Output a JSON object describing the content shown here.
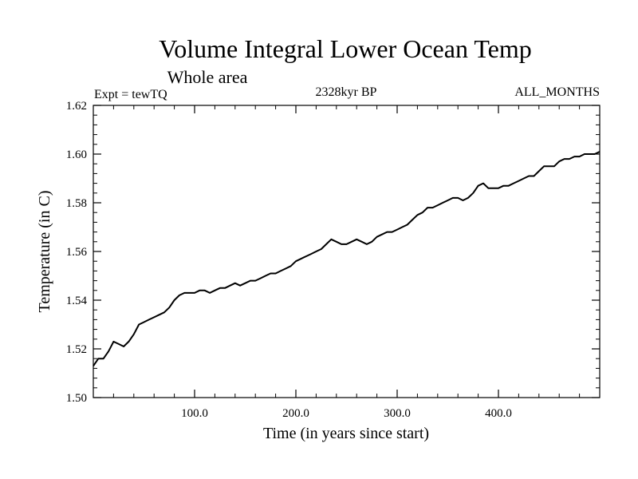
{
  "chart_data": {
    "type": "line",
    "title": "Volume Integral Lower Ocean Temp",
    "subtitle": "Whole area",
    "left_label": "Expt = tewTQ",
    "center_label": "2328kyr BP",
    "right_label": "ALL_MONTHS",
    "xlabel": "Time (in years since start)",
    "ylabel": "Temperature (in C)",
    "xlim": [
      0,
      500
    ],
    "ylim": [
      1.5,
      1.62
    ],
    "x_ticks": [
      {
        "value": 100,
        "label": "100.0"
      },
      {
        "value": 200,
        "label": "200.0"
      },
      {
        "value": 300,
        "label": "300.0"
      },
      {
        "value": 400,
        "label": "400.0"
      }
    ],
    "y_ticks": [
      {
        "value": 1.5,
        "label": "1.50"
      },
      {
        "value": 1.52,
        "label": "1.52"
      },
      {
        "value": 1.54,
        "label": "1.54"
      },
      {
        "value": 1.56,
        "label": "1.56"
      },
      {
        "value": 1.58,
        "label": "1.58"
      },
      {
        "value": 1.6,
        "label": "1.60"
      },
      {
        "value": 1.62,
        "label": "1.62"
      }
    ],
    "series": [
      {
        "name": "Volume integral lower ocean temperature",
        "color": "#000000",
        "points": [
          [
            0,
            1.513
          ],
          [
            5,
            1.516
          ],
          [
            10,
            1.516
          ],
          [
            15,
            1.519
          ],
          [
            20,
            1.523
          ],
          [
            25,
            1.522
          ],
          [
            30,
            1.521
          ],
          [
            35,
            1.523
          ],
          [
            40,
            1.526
          ],
          [
            45,
            1.53
          ],
          [
            50,
            1.531
          ],
          [
            55,
            1.532
          ],
          [
            60,
            1.533
          ],
          [
            65,
            1.534
          ],
          [
            70,
            1.535
          ],
          [
            75,
            1.537
          ],
          [
            80,
            1.54
          ],
          [
            85,
            1.542
          ],
          [
            90,
            1.543
          ],
          [
            95,
            1.543
          ],
          [
            100,
            1.543
          ],
          [
            105,
            1.544
          ],
          [
            110,
            1.544
          ],
          [
            115,
            1.543
          ],
          [
            120,
            1.544
          ],
          [
            125,
            1.545
          ],
          [
            130,
            1.545
          ],
          [
            135,
            1.546
          ],
          [
            140,
            1.547
          ],
          [
            145,
            1.546
          ],
          [
            150,
            1.547
          ],
          [
            155,
            1.548
          ],
          [
            160,
            1.548
          ],
          [
            165,
            1.549
          ],
          [
            170,
            1.55
          ],
          [
            175,
            1.551
          ],
          [
            180,
            1.551
          ],
          [
            185,
            1.552
          ],
          [
            190,
            1.553
          ],
          [
            195,
            1.554
          ],
          [
            200,
            1.556
          ],
          [
            205,
            1.557
          ],
          [
            210,
            1.558
          ],
          [
            215,
            1.559
          ],
          [
            220,
            1.56
          ],
          [
            225,
            1.561
          ],
          [
            230,
            1.563
          ],
          [
            235,
            1.565
          ],
          [
            240,
            1.564
          ],
          [
            245,
            1.563
          ],
          [
            250,
            1.563
          ],
          [
            255,
            1.564
          ],
          [
            260,
            1.565
          ],
          [
            265,
            1.564
          ],
          [
            270,
            1.563
          ],
          [
            275,
            1.564
          ],
          [
            280,
            1.566
          ],
          [
            285,
            1.567
          ],
          [
            290,
            1.568
          ],
          [
            295,
            1.568
          ],
          [
            300,
            1.569
          ],
          [
            305,
            1.57
          ],
          [
            310,
            1.571
          ],
          [
            315,
            1.573
          ],
          [
            320,
            1.575
          ],
          [
            325,
            1.576
          ],
          [
            330,
            1.578
          ],
          [
            335,
            1.578
          ],
          [
            340,
            1.579
          ],
          [
            345,
            1.58
          ],
          [
            350,
            1.581
          ],
          [
            355,
            1.582
          ],
          [
            360,
            1.582
          ],
          [
            365,
            1.581
          ],
          [
            370,
            1.582
          ],
          [
            375,
            1.584
          ],
          [
            380,
            1.587
          ],
          [
            385,
            1.588
          ],
          [
            390,
            1.586
          ],
          [
            395,
            1.586
          ],
          [
            400,
            1.586
          ],
          [
            405,
            1.587
          ],
          [
            410,
            1.587
          ],
          [
            415,
            1.588
          ],
          [
            420,
            1.589
          ],
          [
            425,
            1.59
          ],
          [
            430,
            1.591
          ],
          [
            435,
            1.591
          ],
          [
            440,
            1.593
          ],
          [
            445,
            1.595
          ],
          [
            450,
            1.595
          ],
          [
            455,
            1.595
          ],
          [
            460,
            1.597
          ],
          [
            465,
            1.598
          ],
          [
            470,
            1.598
          ],
          [
            475,
            1.599
          ],
          [
            480,
            1.599
          ],
          [
            485,
            1.6
          ],
          [
            490,
            1.6
          ],
          [
            495,
            1.6
          ],
          [
            500,
            1.601
          ]
        ]
      }
    ]
  }
}
